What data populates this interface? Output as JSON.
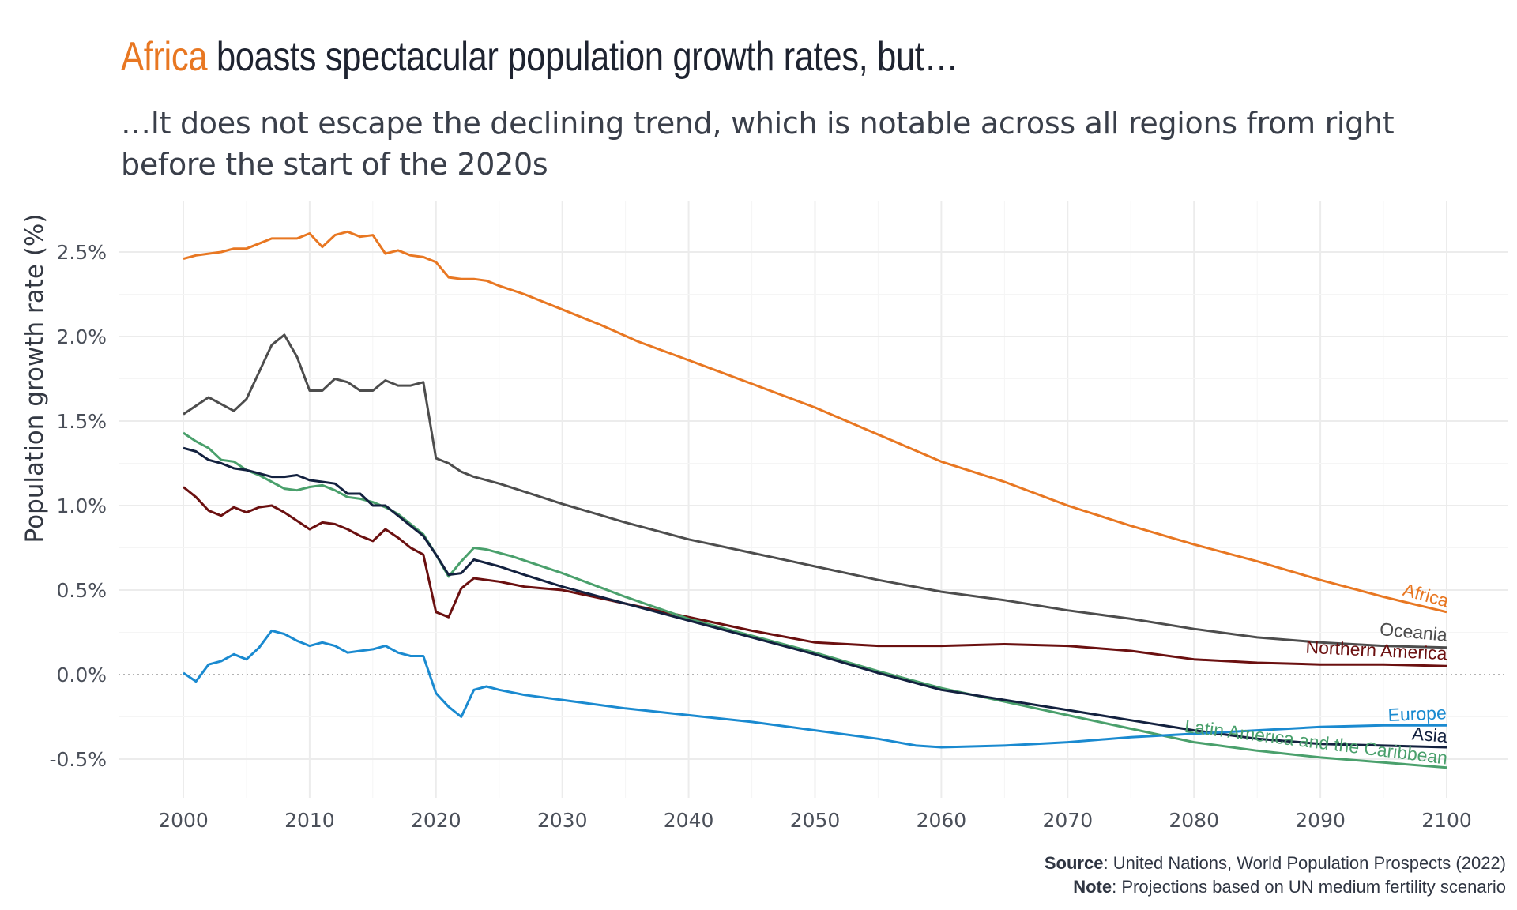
{
  "title": {
    "highlight": "Africa",
    "rest": " boasts spectacular population growth rates, but…"
  },
  "subtitle": "…It does not escape the declining trend, which is notable across all regions from right before the start of the 2020s",
  "caption": {
    "source_label": "Source",
    "source_text": ": United Nations, World Population Prospects (2022)",
    "note_label": "Note",
    "note_text": ": Projections based on UN medium fertility scenario"
  },
  "chart_data": {
    "type": "line",
    "ylabel": "Population growth rate (%)",
    "xlabel": "",
    "xlim": [
      2000,
      2100
    ],
    "ylim": [
      -0.6,
      2.75
    ],
    "xticks": [
      2000,
      2010,
      2020,
      2030,
      2040,
      2050,
      2060,
      2070,
      2080,
      2090,
      2100
    ],
    "yticks": [
      -0.5,
      0.0,
      0.5,
      1.0,
      1.5,
      2.0,
      2.5
    ],
    "ytick_labels": [
      "-0.5%",
      "0.0%",
      "0.5%",
      "1.0%",
      "1.5%",
      "2.0%",
      "2.5%"
    ],
    "grid": true,
    "legend": "direct labels at line ends",
    "series": [
      {
        "name": "Africa",
        "color": "#e87722",
        "points": [
          [
            2000,
            2.46
          ],
          [
            2001,
            2.48
          ],
          [
            2002,
            2.49
          ],
          [
            2003,
            2.5
          ],
          [
            2004,
            2.52
          ],
          [
            2005,
            2.52
          ],
          [
            2006,
            2.55
          ],
          [
            2007,
            2.58
          ],
          [
            2008,
            2.58
          ],
          [
            2009,
            2.58
          ],
          [
            2010,
            2.61
          ],
          [
            2011,
            2.53
          ],
          [
            2012,
            2.6
          ],
          [
            2013,
            2.62
          ],
          [
            2014,
            2.59
          ],
          [
            2015,
            2.6
          ],
          [
            2016,
            2.49
          ],
          [
            2017,
            2.51
          ],
          [
            2018,
            2.48
          ],
          [
            2019,
            2.47
          ],
          [
            2020,
            2.44
          ],
          [
            2021,
            2.35
          ],
          [
            2022,
            2.34
          ],
          [
            2023,
            2.34
          ],
          [
            2024,
            2.33
          ],
          [
            2025,
            2.3
          ],
          [
            2027,
            2.25
          ],
          [
            2030,
            2.16
          ],
          [
            2033,
            2.07
          ],
          [
            2036,
            1.97
          ],
          [
            2040,
            1.86
          ],
          [
            2045,
            1.72
          ],
          [
            2050,
            1.58
          ],
          [
            2055,
            1.42
          ],
          [
            2060,
            1.26
          ],
          [
            2065,
            1.14
          ],
          [
            2070,
            1.0
          ],
          [
            2075,
            0.88
          ],
          [
            2080,
            0.77
          ],
          [
            2085,
            0.67
          ],
          [
            2090,
            0.56
          ],
          [
            2095,
            0.46
          ],
          [
            2100,
            0.37
          ]
        ]
      },
      {
        "name": "Oceania",
        "color": "#4d4d4d",
        "points": [
          [
            2000,
            1.54
          ],
          [
            2002,
            1.64
          ],
          [
            2004,
            1.56
          ],
          [
            2005,
            1.63
          ],
          [
            2007,
            1.95
          ],
          [
            2008,
            2.01
          ],
          [
            2009,
            1.88
          ],
          [
            2010,
            1.68
          ],
          [
            2011,
            1.68
          ],
          [
            2012,
            1.75
          ],
          [
            2013,
            1.73
          ],
          [
            2014,
            1.68
          ],
          [
            2015,
            1.68
          ],
          [
            2016,
            1.74
          ],
          [
            2017,
            1.71
          ],
          [
            2018,
            1.71
          ],
          [
            2019,
            1.73
          ],
          [
            2020,
            1.28
          ],
          [
            2021,
            1.25
          ],
          [
            2022,
            1.2
          ],
          [
            2023,
            1.17
          ],
          [
            2025,
            1.13
          ],
          [
            2030,
            1.01
          ],
          [
            2035,
            0.9
          ],
          [
            2040,
            0.8
          ],
          [
            2045,
            0.72
          ],
          [
            2050,
            0.64
          ],
          [
            2055,
            0.56
          ],
          [
            2060,
            0.49
          ],
          [
            2065,
            0.44
          ],
          [
            2070,
            0.38
          ],
          [
            2075,
            0.33
          ],
          [
            2080,
            0.27
          ],
          [
            2085,
            0.22
          ],
          [
            2090,
            0.19
          ],
          [
            2095,
            0.17
          ],
          [
            2100,
            0.16
          ]
        ]
      },
      {
        "name": "Northern America",
        "color": "#6b1010",
        "points": [
          [
            2000,
            1.11
          ],
          [
            2001,
            1.05
          ],
          [
            2002,
            0.97
          ],
          [
            2003,
            0.94
          ],
          [
            2004,
            0.99
          ],
          [
            2005,
            0.96
          ],
          [
            2006,
            0.99
          ],
          [
            2007,
            1.0
          ],
          [
            2008,
            0.96
          ],
          [
            2009,
            0.91
          ],
          [
            2010,
            0.86
          ],
          [
            2011,
            0.9
          ],
          [
            2012,
            0.89
          ],
          [
            2013,
            0.86
          ],
          [
            2014,
            0.82
          ],
          [
            2015,
            0.79
          ],
          [
            2016,
            0.86
          ],
          [
            2017,
            0.81
          ],
          [
            2018,
            0.75
          ],
          [
            2019,
            0.71
          ],
          [
            2020,
            0.37
          ],
          [
            2021,
            0.34
          ],
          [
            2022,
            0.51
          ],
          [
            2023,
            0.57
          ],
          [
            2025,
            0.55
          ],
          [
            2027,
            0.52
          ],
          [
            2030,
            0.5
          ],
          [
            2035,
            0.42
          ],
          [
            2040,
            0.34
          ],
          [
            2045,
            0.26
          ],
          [
            2050,
            0.19
          ],
          [
            2055,
            0.17
          ],
          [
            2060,
            0.17
          ],
          [
            2065,
            0.18
          ],
          [
            2070,
            0.17
          ],
          [
            2075,
            0.14
          ],
          [
            2080,
            0.09
          ],
          [
            2085,
            0.07
          ],
          [
            2090,
            0.06
          ],
          [
            2095,
            0.06
          ],
          [
            2100,
            0.05
          ]
        ]
      },
      {
        "name": "Latin America and the Caribbean",
        "color": "#4aa06c",
        "points": [
          [
            2000,
            1.43
          ],
          [
            2001,
            1.38
          ],
          [
            2002,
            1.34
          ],
          [
            2003,
            1.27
          ],
          [
            2004,
            1.26
          ],
          [
            2005,
            1.21
          ],
          [
            2006,
            1.18
          ],
          [
            2007,
            1.14
          ],
          [
            2008,
            1.1
          ],
          [
            2009,
            1.09
          ],
          [
            2010,
            1.11
          ],
          [
            2011,
            1.12
          ],
          [
            2012,
            1.09
          ],
          [
            2013,
            1.05
          ],
          [
            2014,
            1.04
          ],
          [
            2015,
            1.02
          ],
          [
            2016,
            0.99
          ],
          [
            2017,
            0.95
          ],
          [
            2018,
            0.89
          ],
          [
            2019,
            0.83
          ],
          [
            2020,
            0.71
          ],
          [
            2021,
            0.58
          ],
          [
            2022,
            0.67
          ],
          [
            2023,
            0.75
          ],
          [
            2024,
            0.74
          ],
          [
            2026,
            0.7
          ],
          [
            2030,
            0.6
          ],
          [
            2035,
            0.46
          ],
          [
            2040,
            0.33
          ],
          [
            2045,
            0.23
          ],
          [
            2050,
            0.13
          ],
          [
            2055,
            0.02
          ],
          [
            2060,
            -0.08
          ],
          [
            2065,
            -0.16
          ],
          [
            2070,
            -0.24
          ],
          [
            2075,
            -0.32
          ],
          [
            2080,
            -0.4
          ],
          [
            2085,
            -0.45
          ],
          [
            2090,
            -0.49
          ],
          [
            2095,
            -0.52
          ],
          [
            2100,
            -0.55
          ]
        ]
      },
      {
        "name": "Asia",
        "color": "#13213f",
        "points": [
          [
            2000,
            1.34
          ],
          [
            2001,
            1.32
          ],
          [
            2002,
            1.27
          ],
          [
            2003,
            1.25
          ],
          [
            2004,
            1.22
          ],
          [
            2005,
            1.21
          ],
          [
            2006,
            1.19
          ],
          [
            2007,
            1.17
          ],
          [
            2008,
            1.17
          ],
          [
            2009,
            1.18
          ],
          [
            2010,
            1.15
          ],
          [
            2011,
            1.14
          ],
          [
            2012,
            1.13
          ],
          [
            2013,
            1.07
          ],
          [
            2014,
            1.07
          ],
          [
            2015,
            1.0
          ],
          [
            2016,
            1.0
          ],
          [
            2017,
            0.94
          ],
          [
            2018,
            0.88
          ],
          [
            2019,
            0.82
          ],
          [
            2020,
            0.71
          ],
          [
            2021,
            0.59
          ],
          [
            2022,
            0.6
          ],
          [
            2023,
            0.68
          ],
          [
            2025,
            0.64
          ],
          [
            2027,
            0.59
          ],
          [
            2030,
            0.52
          ],
          [
            2035,
            0.42
          ],
          [
            2040,
            0.32
          ],
          [
            2045,
            0.22
          ],
          [
            2050,
            0.12
          ],
          [
            2055,
            0.01
          ],
          [
            2060,
            -0.09
          ],
          [
            2065,
            -0.15
          ],
          [
            2070,
            -0.21
          ],
          [
            2075,
            -0.27
          ],
          [
            2080,
            -0.33
          ],
          [
            2085,
            -0.38
          ],
          [
            2090,
            -0.41
          ],
          [
            2095,
            -0.42
          ],
          [
            2100,
            -0.43
          ]
        ]
      },
      {
        "name": "Europe",
        "color": "#1a8ad0",
        "points": [
          [
            2000,
            0.01
          ],
          [
            2001,
            -0.04
          ],
          [
            2002,
            0.06
          ],
          [
            2003,
            0.08
          ],
          [
            2004,
            0.12
          ],
          [
            2005,
            0.09
          ],
          [
            2006,
            0.16
          ],
          [
            2007,
            0.26
          ],
          [
            2008,
            0.24
          ],
          [
            2009,
            0.2
          ],
          [
            2010,
            0.17
          ],
          [
            2011,
            0.19
          ],
          [
            2012,
            0.17
          ],
          [
            2013,
            0.13
          ],
          [
            2014,
            0.14
          ],
          [
            2015,
            0.15
          ],
          [
            2016,
            0.17
          ],
          [
            2017,
            0.13
          ],
          [
            2018,
            0.11
          ],
          [
            2019,
            0.11
          ],
          [
            2020,
            -0.11
          ],
          [
            2021,
            -0.19
          ],
          [
            2022,
            -0.25
          ],
          [
            2023,
            -0.09
          ],
          [
            2024,
            -0.07
          ],
          [
            2025,
            -0.09
          ],
          [
            2027,
            -0.12
          ],
          [
            2030,
            -0.15
          ],
          [
            2035,
            -0.2
          ],
          [
            2040,
            -0.24
          ],
          [
            2045,
            -0.28
          ],
          [
            2050,
            -0.33
          ],
          [
            2055,
            -0.38
          ],
          [
            2058,
            -0.42
          ],
          [
            2060,
            -0.43
          ],
          [
            2065,
            -0.42
          ],
          [
            2070,
            -0.4
          ],
          [
            2075,
            -0.37
          ],
          [
            2080,
            -0.35
          ],
          [
            2085,
            -0.33
          ],
          [
            2090,
            -0.31
          ],
          [
            2095,
            -0.3
          ],
          [
            2100,
            -0.3
          ]
        ]
      }
    ]
  }
}
